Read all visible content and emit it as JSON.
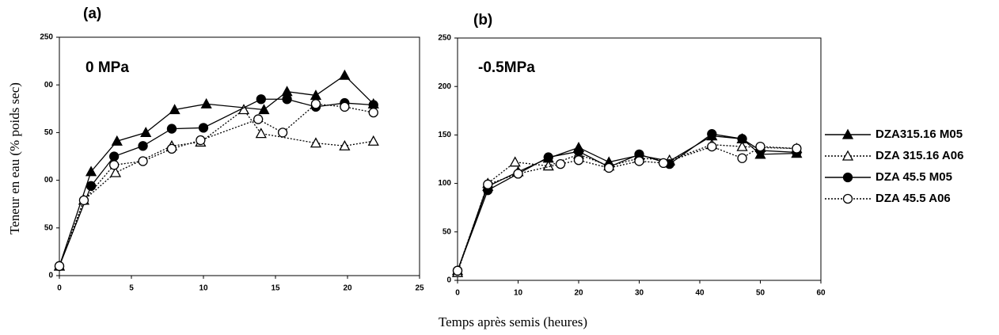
{
  "chart_data": [
    {
      "type": "line",
      "title": "(a)",
      "annotation": "0 MPa",
      "ylabel": "Teneur en eau (% poids sec)",
      "xlabel": "Temps après semis (heures)",
      "xlim": [
        0,
        25
      ],
      "xticks": [
        0,
        5,
        10,
        15,
        20,
        25
      ],
      "ylim": [
        0,
        250
      ],
      "yticks": [
        0,
        50,
        {
          "value": 100,
          "label": "00"
        },
        {
          "value": 150,
          "label": "50"
        },
        {
          "value": 200,
          "label": "00"
        },
        250
      ],
      "series": [
        {
          "name": "DZA315.16 M05",
          "color": "#000000",
          "marker": "triangle",
          "filled": true,
          "dash": "solid",
          "x": [
            0,
            2.2,
            4,
            6,
            8,
            10.2,
            14.2,
            15.8,
            17.8,
            19.8,
            21.8
          ],
          "values": [
            10,
            109,
            141,
            150,
            174,
            180,
            174,
            193,
            189,
            210,
            180
          ]
        },
        {
          "name": "DZA 315.16 A06",
          "color": "#000000",
          "marker": "triangle",
          "filled": false,
          "dash": "dotted",
          "x": [
            0,
            1.7,
            3.9,
            7.8,
            9.8,
            12.8,
            14,
            17.8,
            19.8,
            21.8
          ],
          "values": [
            10,
            79,
            108,
            136,
            140,
            174,
            149,
            139,
            136,
            141
          ]
        },
        {
          "name": "DZA 45.5 M05",
          "color": "#000000",
          "marker": "circle",
          "filled": true,
          "dash": "solid",
          "x": [
            0,
            2.2,
            3.8,
            5.8,
            7.8,
            10,
            14,
            15.8,
            17.8,
            19.8,
            21.8
          ],
          "values": [
            10,
            94,
            125,
            136,
            154,
            155,
            185,
            185,
            177,
            181,
            179
          ]
        },
        {
          "name": "DZA 45.5 A06",
          "color": "#000000",
          "marker": "circle",
          "filled": false,
          "dash": "dotted",
          "x": [
            0,
            1.7,
            3.8,
            5.8,
            7.8,
            9.8,
            13.8,
            15.5,
            17.8,
            19.8,
            21.8
          ],
          "values": [
            10,
            79,
            116,
            120,
            133,
            142,
            164,
            150,
            180,
            177,
            171
          ]
        }
      ]
    },
    {
      "type": "line",
      "title": "(b)",
      "annotation": "-0.5MPa",
      "xlim": [
        0,
        60
      ],
      "xticks": [
        0,
        10,
        20,
        30,
        40,
        50,
        60
      ],
      "ylim": [
        0,
        250
      ],
      "yticks": [
        0,
        50,
        100,
        150,
        200,
        250
      ],
      "series": [
        {
          "color": "#000000",
          "marker": "triangle",
          "filled": true,
          "dash": "solid",
          "x": [
            0,
            5,
            10,
            15,
            20,
            25,
            30,
            35,
            42,
            47,
            50,
            56
          ],
          "values": [
            10,
            97,
            112,
            126,
            137,
            122,
            129,
            123,
            149,
            146,
            130,
            131
          ]
        },
        {
          "color": "#000000",
          "marker": "triangle",
          "filled": false,
          "dash": "dotted",
          "x": [
            0,
            5,
            9.5,
            15,
            20,
            25,
            30,
            35,
            42,
            47,
            50,
            56
          ],
          "values": [
            8,
            100,
            122,
            118,
            130,
            118,
            126,
            124,
            140,
            138,
            137,
            136
          ]
        },
        {
          "color": "#000000",
          "marker": "circle",
          "filled": true,
          "dash": "solid",
          "x": [
            0,
            5,
            10,
            15,
            20,
            25,
            30,
            35,
            42,
            47,
            50,
            56
          ],
          "values": [
            10,
            93,
            110,
            127,
            133,
            117,
            130,
            120,
            151,
            146,
            134,
            132
          ]
        },
        {
          "color": "#000000",
          "marker": "circle",
          "filled": false,
          "dash": "dotted",
          "x": [
            0,
            5,
            10,
            17,
            20,
            25,
            30,
            34,
            42,
            47,
            50,
            56
          ],
          "values": [
            10,
            99,
            110,
            120,
            124,
            116,
            123,
            121,
            138,
            126,
            138,
            136
          ]
        }
      ]
    }
  ]
}
